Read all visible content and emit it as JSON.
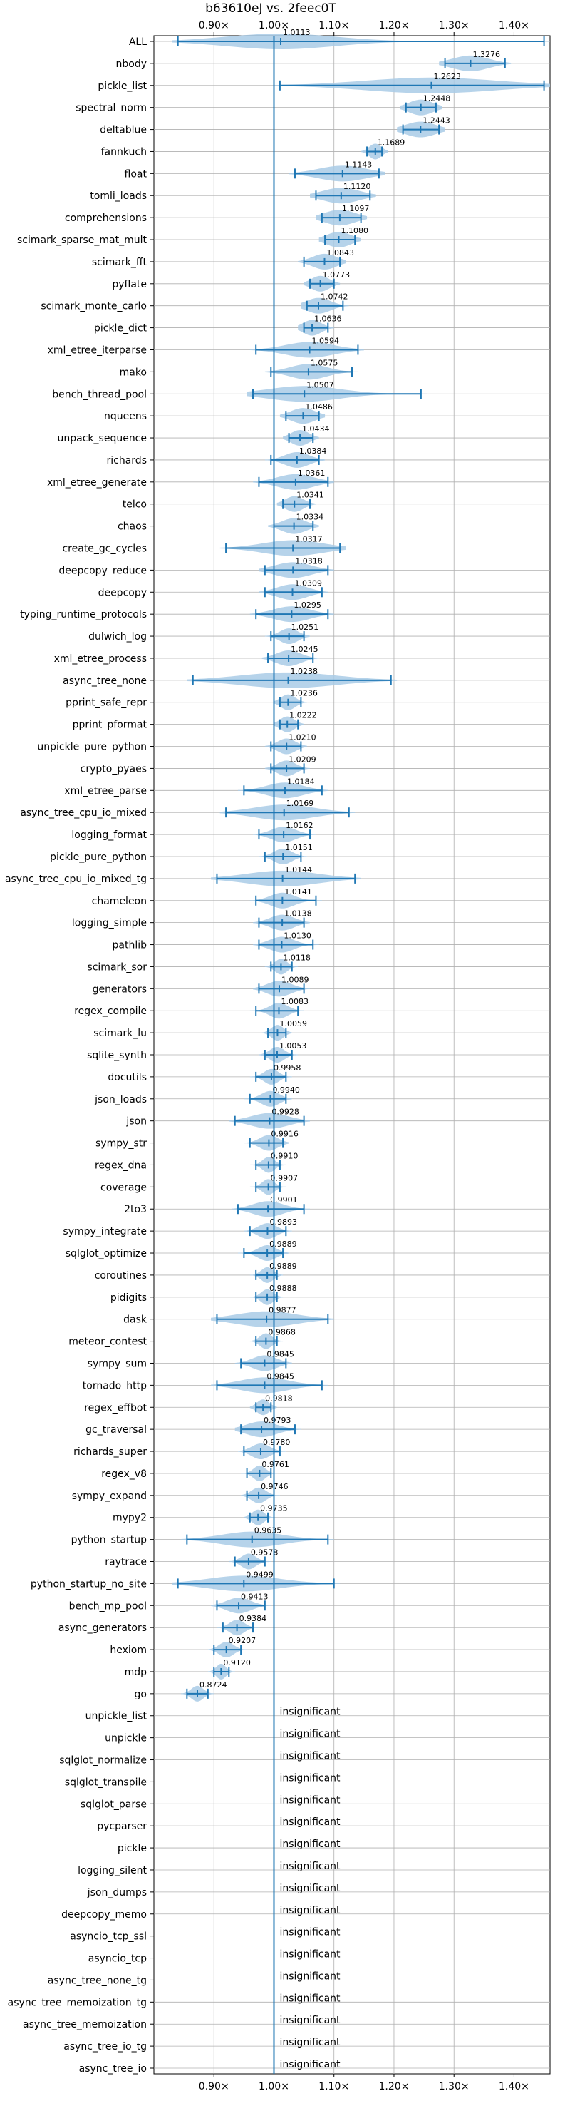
{
  "chart_data": {
    "type": "violin",
    "title": "b63610eJ vs. 2feec0T",
    "xlim": [
      0.8,
      1.46
    ],
    "x_ticks": [
      0.9,
      1.0,
      1.1,
      1.2,
      1.3,
      1.4
    ],
    "x_tick_labels": [
      "0.90×",
      "1.00×",
      "1.10×",
      "1.20×",
      "1.30×",
      "1.40×"
    ],
    "reference_line": 1.0,
    "grid": true,
    "color": "#1f77b4",
    "fill_color": "#a9cbe6",
    "insignificant_label": "insignificant",
    "benchmarks": [
      {
        "name": "ALL",
        "value": 1.0113,
        "min": 0.84,
        "max": 1.45,
        "spread": 0.09
      },
      {
        "name": "nbody",
        "value": 1.3276,
        "min": 1.285,
        "max": 1.385,
        "spread": 0.03
      },
      {
        "name": "pickle_list",
        "value": 1.2623,
        "min": 1.01,
        "max": 1.45,
        "spread": 0.11
      },
      {
        "name": "spectral_norm",
        "value": 1.2448,
        "min": 1.22,
        "max": 1.27,
        "spread": 0.02
      },
      {
        "name": "deltablue",
        "value": 1.2443,
        "min": 1.215,
        "max": 1.275,
        "spread": 0.025
      },
      {
        "name": "fannkuch",
        "value": 1.1689,
        "min": 1.155,
        "max": 1.18,
        "spread": 0.01
      },
      {
        "name": "float",
        "value": 1.1143,
        "min": 1.035,
        "max": 1.175,
        "spread": 0.04
      },
      {
        "name": "tomli_loads",
        "value": 1.112,
        "min": 1.07,
        "max": 1.16,
        "spread": 0.03
      },
      {
        "name": "comprehensions",
        "value": 1.1097,
        "min": 1.08,
        "max": 1.145,
        "spread": 0.025
      },
      {
        "name": "scimark_sparse_mat_mult",
        "value": 1.108,
        "min": 1.085,
        "max": 1.135,
        "spread": 0.02
      },
      {
        "name": "scimark_fft",
        "value": 1.0843,
        "min": 1.05,
        "max": 1.11,
        "spread": 0.02
      },
      {
        "name": "pyflate",
        "value": 1.0773,
        "min": 1.06,
        "max": 1.1,
        "spread": 0.015
      },
      {
        "name": "scimark_monte_carlo",
        "value": 1.0742,
        "min": 1.055,
        "max": 1.115,
        "spread": 0.02
      },
      {
        "name": "pickle_dict",
        "value": 1.0636,
        "min": 1.05,
        "max": 1.09,
        "spread": 0.015
      },
      {
        "name": "xml_etree_iterparse",
        "value": 1.0594,
        "min": 0.97,
        "max": 1.14,
        "spread": 0.04
      },
      {
        "name": "mako",
        "value": 1.0575,
        "min": 0.995,
        "max": 1.13,
        "spread": 0.03
      },
      {
        "name": "bench_thread_pool",
        "value": 1.0507,
        "min": 0.965,
        "max": 1.245,
        "spread": 0.06
      },
      {
        "name": "nqueens",
        "value": 1.0486,
        "min": 1.02,
        "max": 1.075,
        "spread": 0.02
      },
      {
        "name": "unpack_sequence",
        "value": 1.0434,
        "min": 1.025,
        "max": 1.065,
        "spread": 0.015
      },
      {
        "name": "richards",
        "value": 1.0384,
        "min": 0.995,
        "max": 1.075,
        "spread": 0.02
      },
      {
        "name": "xml_etree_generate",
        "value": 1.0361,
        "min": 0.975,
        "max": 1.09,
        "spread": 0.03
      },
      {
        "name": "telco",
        "value": 1.0341,
        "min": 1.015,
        "max": 1.06,
        "spread": 0.015
      },
      {
        "name": "chaos",
        "value": 1.0334,
        "min": 1.0,
        "max": 1.065,
        "spread": 0.02
      },
      {
        "name": "create_gc_cycles",
        "value": 1.0317,
        "min": 0.92,
        "max": 1.11,
        "spread": 0.05
      },
      {
        "name": "deepcopy_reduce",
        "value": 1.0318,
        "min": 0.985,
        "max": 1.09,
        "spread": 0.03
      },
      {
        "name": "deepcopy",
        "value": 1.0309,
        "min": 0.985,
        "max": 1.08,
        "spread": 0.025
      },
      {
        "name": "typing_runtime_protocols",
        "value": 1.0295,
        "min": 0.97,
        "max": 1.09,
        "spread": 0.03
      },
      {
        "name": "dulwich_log",
        "value": 1.0251,
        "min": 0.995,
        "max": 1.05,
        "spread": 0.015
      },
      {
        "name": "xml_etree_process",
        "value": 1.0245,
        "min": 0.99,
        "max": 1.065,
        "spread": 0.02
      },
      {
        "name": "async_tree_none",
        "value": 1.0238,
        "min": 0.865,
        "max": 1.195,
        "spread": 0.08
      },
      {
        "name": "pprint_safe_repr",
        "value": 1.0236,
        "min": 1.01,
        "max": 1.045,
        "spread": 0.012
      },
      {
        "name": "pprint_pformat",
        "value": 1.0222,
        "min": 1.01,
        "max": 1.04,
        "spread": 0.012
      },
      {
        "name": "unpickle_pure_python",
        "value": 1.021,
        "min": 0.995,
        "max": 1.045,
        "spread": 0.015
      },
      {
        "name": "crypto_pyaes",
        "value": 1.0209,
        "min": 0.995,
        "max": 1.05,
        "spread": 0.015
      },
      {
        "name": "xml_etree_parse",
        "value": 1.0184,
        "min": 0.95,
        "max": 1.08,
        "spread": 0.03
      },
      {
        "name": "async_tree_cpu_io_mixed",
        "value": 1.0169,
        "min": 0.92,
        "max": 1.125,
        "spread": 0.05
      },
      {
        "name": "logging_format",
        "value": 1.0162,
        "min": 0.975,
        "max": 1.06,
        "spread": 0.02
      },
      {
        "name": "pickle_pure_python",
        "value": 1.0151,
        "min": 0.985,
        "max": 1.045,
        "spread": 0.015
      },
      {
        "name": "async_tree_cpu_io_mixed_tg",
        "value": 1.0144,
        "min": 0.905,
        "max": 1.135,
        "spread": 0.06
      },
      {
        "name": "chameleon",
        "value": 1.0141,
        "min": 0.97,
        "max": 1.07,
        "spread": 0.02
      },
      {
        "name": "logging_simple",
        "value": 1.0138,
        "min": 0.975,
        "max": 1.05,
        "spread": 0.02
      },
      {
        "name": "pathlib",
        "value": 1.013,
        "min": 0.975,
        "max": 1.065,
        "spread": 0.02
      },
      {
        "name": "scimark_sor",
        "value": 1.0118,
        "min": 0.995,
        "max": 1.03,
        "spread": 0.01
      },
      {
        "name": "generators",
        "value": 1.0089,
        "min": 0.975,
        "max": 1.05,
        "spread": 0.02
      },
      {
        "name": "regex_compile",
        "value": 1.0083,
        "min": 0.97,
        "max": 1.04,
        "spread": 0.015
      },
      {
        "name": "scimark_lu",
        "value": 1.0059,
        "min": 0.99,
        "max": 1.02,
        "spread": 0.01
      },
      {
        "name": "sqlite_synth",
        "value": 1.0053,
        "min": 0.985,
        "max": 1.03,
        "spread": 0.012
      },
      {
        "name": "docutils",
        "value": 0.9958,
        "min": 0.97,
        "max": 1.02,
        "spread": 0.012
      },
      {
        "name": "json_loads",
        "value": 0.994,
        "min": 0.96,
        "max": 1.02,
        "spread": 0.015
      },
      {
        "name": "json",
        "value": 0.9928,
        "min": 0.935,
        "max": 1.05,
        "spread": 0.03
      },
      {
        "name": "sympy_str",
        "value": 0.9916,
        "min": 0.96,
        "max": 1.015,
        "spread": 0.015
      },
      {
        "name": "regex_dna",
        "value": 0.991,
        "min": 0.97,
        "max": 1.01,
        "spread": 0.01
      },
      {
        "name": "coverage",
        "value": 0.9907,
        "min": 0.97,
        "max": 1.01,
        "spread": 0.01
      },
      {
        "name": "2to3",
        "value": 0.9901,
        "min": 0.94,
        "max": 1.05,
        "spread": 0.025
      },
      {
        "name": "sympy_integrate",
        "value": 0.9893,
        "min": 0.96,
        "max": 1.02,
        "spread": 0.015
      },
      {
        "name": "sqlglot_optimize",
        "value": 0.9889,
        "min": 0.95,
        "max": 1.015,
        "spread": 0.015
      },
      {
        "name": "coroutines",
        "value": 0.9889,
        "min": 0.97,
        "max": 1.005,
        "spread": 0.01
      },
      {
        "name": "pidigits",
        "value": 0.9888,
        "min": 0.97,
        "max": 1.005,
        "spread": 0.01
      },
      {
        "name": "dask",
        "value": 0.9877,
        "min": 0.905,
        "max": 1.09,
        "spread": 0.05
      },
      {
        "name": "meteor_contest",
        "value": 0.9868,
        "min": 0.97,
        "max": 1.005,
        "spread": 0.01
      },
      {
        "name": "sympy_sum",
        "value": 0.9845,
        "min": 0.945,
        "max": 1.02,
        "spread": 0.02
      },
      {
        "name": "tornado_http",
        "value": 0.9845,
        "min": 0.905,
        "max": 1.08,
        "spread": 0.04
      },
      {
        "name": "regex_effbot",
        "value": 0.9818,
        "min": 0.97,
        "max": 0.995,
        "spread": 0.01
      },
      {
        "name": "gc_traversal",
        "value": 0.9793,
        "min": 0.945,
        "max": 1.035,
        "spread": 0.025
      },
      {
        "name": "richards_super",
        "value": 0.978,
        "min": 0.95,
        "max": 1.01,
        "spread": 0.015
      },
      {
        "name": "regex_v8",
        "value": 0.9761,
        "min": 0.955,
        "max": 0.995,
        "spread": 0.01
      },
      {
        "name": "sympy_expand",
        "value": 0.9746,
        "min": 0.955,
        "max": 1.0,
        "spread": 0.012
      },
      {
        "name": "mypy2",
        "value": 0.9735,
        "min": 0.96,
        "max": 0.99,
        "spread": 0.01
      },
      {
        "name": "python_startup",
        "value": 0.9635,
        "min": 0.855,
        "max": 1.09,
        "spread": 0.05
      },
      {
        "name": "raytrace",
        "value": 0.9578,
        "min": 0.935,
        "max": 0.985,
        "spread": 0.012
      },
      {
        "name": "python_startup_no_site",
        "value": 0.9499,
        "min": 0.84,
        "max": 1.1,
        "spread": 0.06
      },
      {
        "name": "bench_mp_pool",
        "value": 0.9413,
        "min": 0.905,
        "max": 0.985,
        "spread": 0.02
      },
      {
        "name": "async_generators",
        "value": 0.9384,
        "min": 0.915,
        "max": 0.965,
        "spread": 0.012
      },
      {
        "name": "hexiom",
        "value": 0.9207,
        "min": 0.9,
        "max": 0.945,
        "spread": 0.012
      },
      {
        "name": "mdp",
        "value": 0.912,
        "min": 0.9,
        "max": 0.925,
        "spread": 0.008
      },
      {
        "name": "go",
        "value": 0.8724,
        "min": 0.855,
        "max": 0.89,
        "spread": 0.01
      },
      {
        "name": "unpickle_list",
        "insignificant": true
      },
      {
        "name": "unpickle",
        "insignificant": true
      },
      {
        "name": "sqlglot_normalize",
        "insignificant": true
      },
      {
        "name": "sqlglot_transpile",
        "insignificant": true
      },
      {
        "name": "sqlglot_parse",
        "insignificant": true
      },
      {
        "name": "pycparser",
        "insignificant": true
      },
      {
        "name": "pickle",
        "insignificant": true
      },
      {
        "name": "logging_silent",
        "insignificant": true
      },
      {
        "name": "json_dumps",
        "insignificant": true
      },
      {
        "name": "deepcopy_memo",
        "insignificant": true
      },
      {
        "name": "asyncio_tcp_ssl",
        "insignificant": true
      },
      {
        "name": "asyncio_tcp",
        "insignificant": true
      },
      {
        "name": "async_tree_none_tg",
        "insignificant": true
      },
      {
        "name": "async_tree_memoization_tg",
        "insignificant": true
      },
      {
        "name": "async_tree_memoization",
        "insignificant": true
      },
      {
        "name": "async_tree_io_tg",
        "insignificant": true
      },
      {
        "name": "async_tree_io",
        "insignificant": true
      }
    ]
  }
}
